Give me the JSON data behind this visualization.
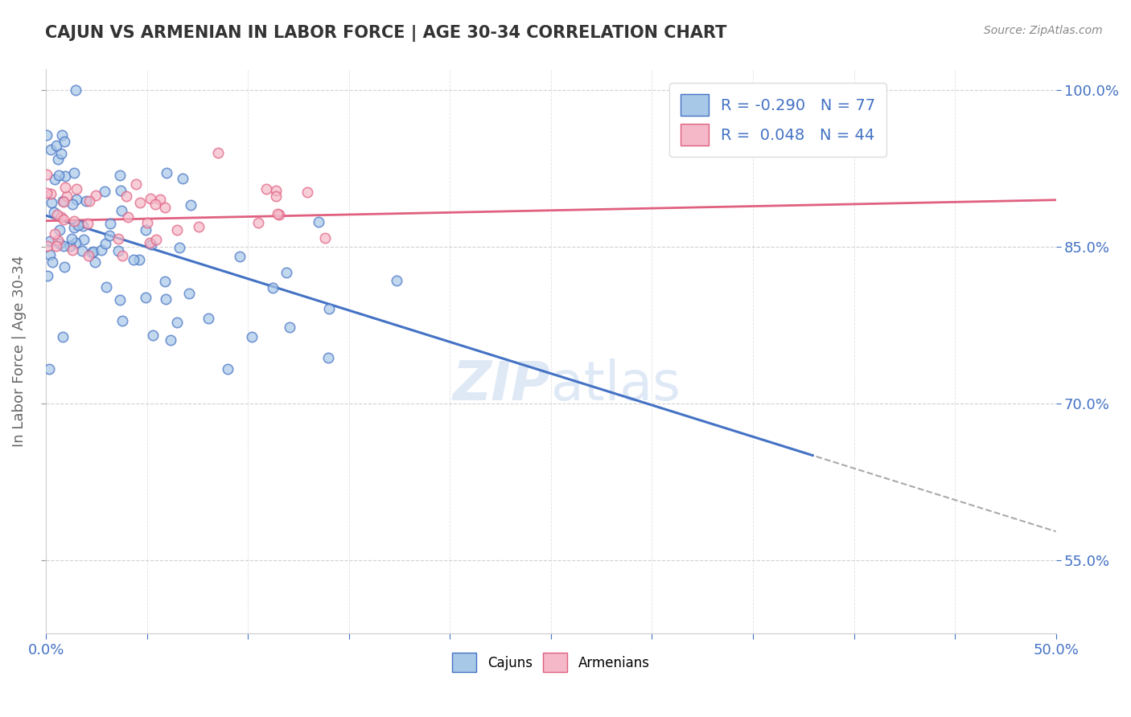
{
  "title": "CAJUN VS ARMENIAN IN LABOR FORCE | AGE 30-34 CORRELATION CHART",
  "source_text": "Source: ZipAtlas.com",
  "xlabel": "",
  "ylabel": "In Labor Force | Age 30-34",
  "legend_bottom": [
    "Cajuns",
    "Armenians"
  ],
  "cajun_R": -0.29,
  "cajun_N": 77,
  "armenian_R": 0.048,
  "armenian_N": 44,
  "cajun_color": "#a8c8e8",
  "armenian_color": "#f4b8c8",
  "trend_cajun_color": "#4472c4",
  "trend_armenian_color": "#e06080",
  "watermark": "ZIPatlas",
  "xlim": [
    0.0,
    0.5
  ],
  "ylim": [
    0.48,
    1.02
  ],
  "xtick_vals": [
    0.0,
    0.05,
    0.1,
    0.15,
    0.2,
    0.25,
    0.3,
    0.35,
    0.4,
    0.45,
    0.5
  ],
  "xtick_labels_show": [
    "0.0%",
    "",
    "",
    "",
    "",
    "",
    "",
    "",
    "",
    "",
    "50.0%"
  ],
  "ytick_vals": [
    0.55,
    0.7,
    0.85,
    1.0
  ],
  "ytick_labels": [
    "55.0%",
    "70.0%",
    "85.0%",
    "100.0%"
  ],
  "background_color": "#ffffff",
  "grid_color": "#cccccc",
  "title_color": "#333333",
  "axis_color": "#4472c4",
  "dashed_color": "#aaaaaa"
}
